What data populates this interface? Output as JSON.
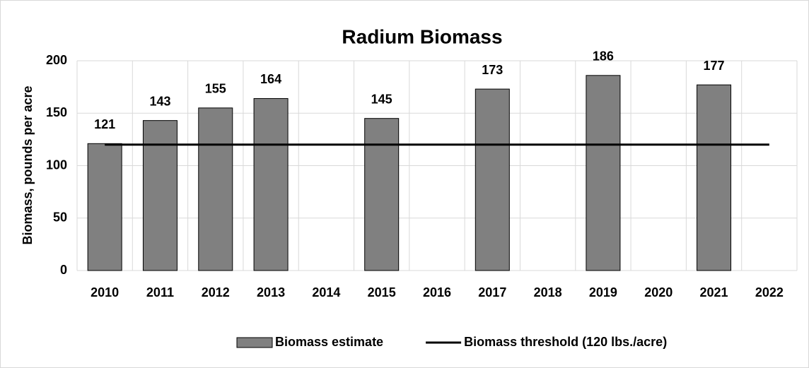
{
  "chart_data": {
    "type": "bar",
    "title": "Radium Biomass",
    "y_label": "Biomass, pounds per acre",
    "categories": [
      "2010",
      "2011",
      "2012",
      "2013",
      "2014",
      "2015",
      "2016",
      "2017",
      "2018",
      "2019",
      "2020",
      "2021",
      "2022"
    ],
    "series": [
      {
        "name": "Biomass estimate",
        "type": "bar",
        "color": "#808080",
        "values": [
          121,
          143,
          155,
          164,
          null,
          145,
          null,
          173,
          null,
          186,
          null,
          177,
          null
        ]
      },
      {
        "name": "Biomass threshold (120 lbs./acre)",
        "type": "line",
        "color": "#000000",
        "values": [
          120,
          120,
          120,
          120,
          120,
          120,
          120,
          120,
          120,
          120,
          120,
          120,
          120
        ]
      }
    ],
    "ylim": [
      0,
      200
    ],
    "yticks": [
      0,
      50,
      100,
      150,
      200
    ],
    "grid": true,
    "legend": "bottom"
  }
}
